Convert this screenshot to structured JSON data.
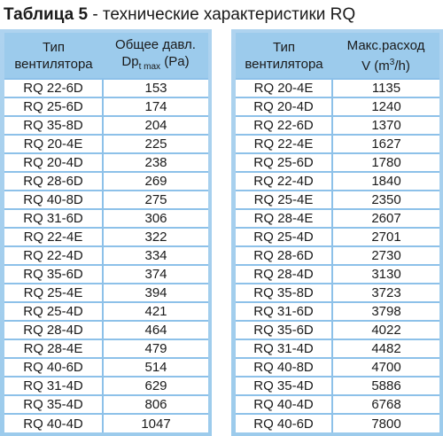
{
  "title": {
    "bold": "Таблица 5",
    "rest": " - технические характеристики RQ"
  },
  "left_table": {
    "headers": {
      "col1_line1": "Тип",
      "col1_line2": "вентилятора",
      "col2_line1": "Общее давл.",
      "col2_line2_main": "Dp",
      "col2_line2_sub": "t max",
      "col2_line2_unit": " (Pa)"
    },
    "rows": [
      [
        "RQ 22-6D",
        "153"
      ],
      [
        "RQ 25-6D",
        "174"
      ],
      [
        "RQ 35-8D",
        "204"
      ],
      [
        "RQ 20-4E",
        "225"
      ],
      [
        "RQ 20-4D",
        "238"
      ],
      [
        "RQ 28-6D",
        "269"
      ],
      [
        "RQ 40-8D",
        "275"
      ],
      [
        "RQ 31-6D",
        "306"
      ],
      [
        "RQ 22-4E",
        "322"
      ],
      [
        "RQ 22-4D",
        "334"
      ],
      [
        "RQ 35-6D",
        "374"
      ],
      [
        "RQ 25-4E",
        "394"
      ],
      [
        "RQ 25-4D",
        "421"
      ],
      [
        "RQ 28-4D",
        "464"
      ],
      [
        "RQ 28-4E",
        "479"
      ],
      [
        "RQ 40-6D",
        "514"
      ],
      [
        "RQ 31-4D",
        "629"
      ],
      [
        "RQ 35-4D",
        "806"
      ],
      [
        "RQ 40-4D",
        "1047"
      ]
    ]
  },
  "right_table": {
    "headers": {
      "col1_line1": "Тип",
      "col1_line2": "вентилятора",
      "col2_line1": "Макс.расход",
      "col2_line2_main": "V (m",
      "col2_line2_sup": "3",
      "col2_line2_unit": "/h)"
    },
    "rows": [
      [
        "RQ 20-4E",
        "1135"
      ],
      [
        "RQ 20-4D",
        "1240"
      ],
      [
        "RQ 22-6D",
        "1370"
      ],
      [
        "RQ 22-4E",
        "1627"
      ],
      [
        "RQ 25-6D",
        "1780"
      ],
      [
        "RQ 22-4D",
        "1840"
      ],
      [
        "RQ 25-4E",
        "2350"
      ],
      [
        "RQ 28-4E",
        "2607"
      ],
      [
        "RQ 25-4D",
        "2701"
      ],
      [
        "RQ 28-6D",
        "2730"
      ],
      [
        "RQ 28-4D",
        "3130"
      ],
      [
        "RQ 35-8D",
        "3723"
      ],
      [
        "RQ 31-6D",
        "3798"
      ],
      [
        "RQ 35-6D",
        "4022"
      ],
      [
        "RQ 31-4D",
        "4482"
      ],
      [
        "RQ 40-8D",
        "4700"
      ],
      [
        "RQ 35-4D",
        "5886"
      ],
      [
        "RQ 40-4D",
        "6768"
      ],
      [
        "RQ 40-6D",
        "7800"
      ]
    ]
  },
  "colors": {
    "header_bg": "#9ccbec",
    "grid_line": "#8dc1e9",
    "cell_bg": "#ffffff"
  }
}
